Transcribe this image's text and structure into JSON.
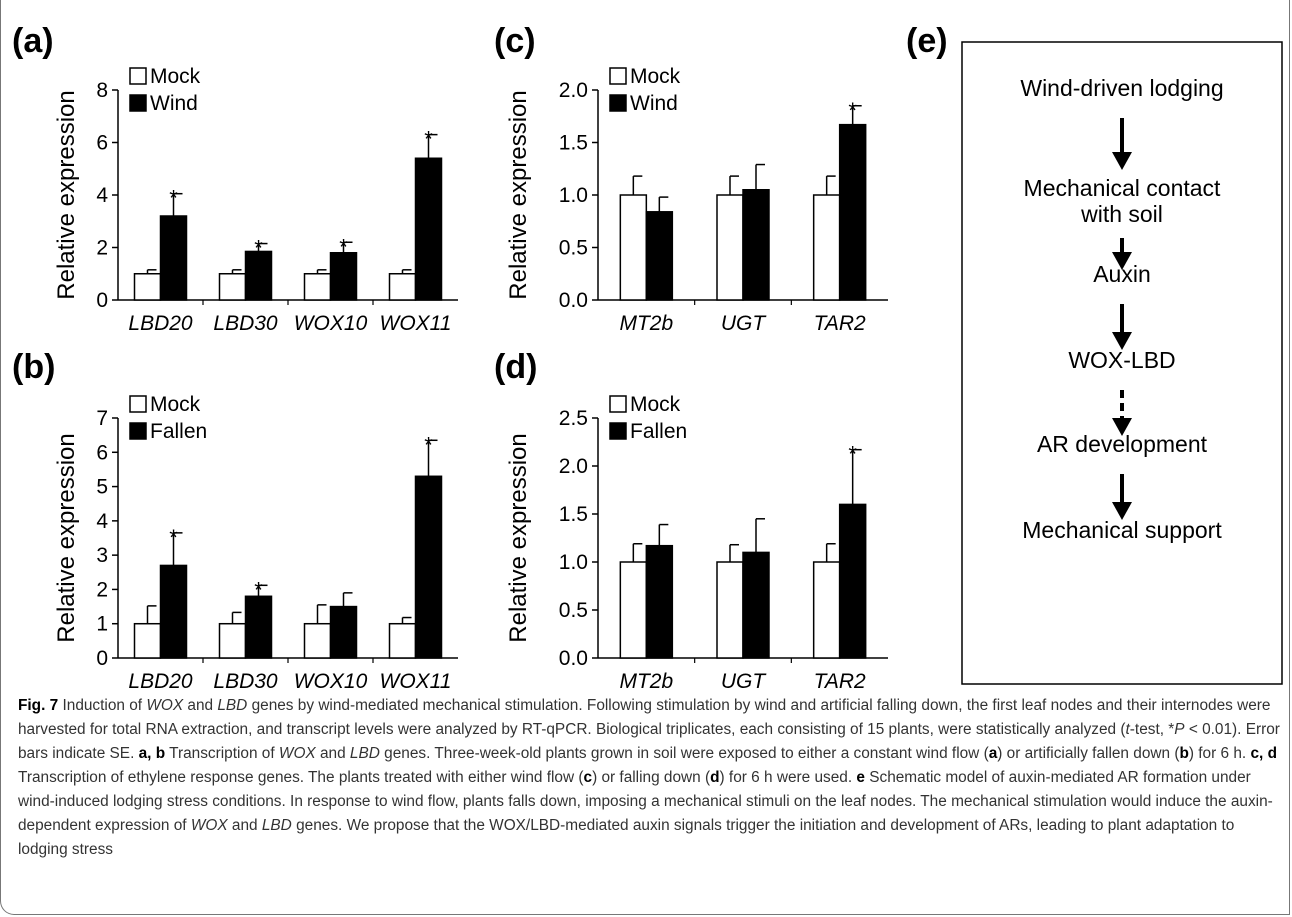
{
  "chart_data": [
    {
      "panel": "(a)",
      "type": "bar",
      "ylabel": "Relative expression",
      "ylim": [
        0,
        8
      ],
      "yticks": [
        0,
        2,
        4,
        6,
        8
      ],
      "categories": [
        "LBD20",
        "LBD30",
        "WOX10",
        "WOX11"
      ],
      "series": [
        {
          "name": "Mock",
          "values": [
            1.0,
            1.0,
            1.0,
            1.0
          ],
          "errors": [
            0.15,
            0.15,
            0.15,
            0.15
          ],
          "color": "#ffffff"
        },
        {
          "name": "Wind",
          "values": [
            3.2,
            1.85,
            1.8,
            5.4
          ],
          "errors": [
            0.85,
            0.3,
            0.4,
            0.9
          ],
          "color": "#000000"
        }
      ],
      "significant": [
        false,
        false,
        false,
        false,
        true,
        true,
        true,
        true
      ],
      "legend": "top-left"
    },
    {
      "panel": "(b)",
      "type": "bar",
      "ylabel": "Relative expression",
      "ylim": [
        0,
        7
      ],
      "yticks": [
        0,
        1,
        2,
        3,
        4,
        5,
        6,
        7
      ],
      "categories": [
        "LBD20",
        "LBD30",
        "WOX10",
        "WOX11"
      ],
      "series": [
        {
          "name": "Mock",
          "values": [
            1.0,
            1.0,
            1.0,
            1.0
          ],
          "errors": [
            0.52,
            0.33,
            0.55,
            0.18
          ],
          "color": "#ffffff"
        },
        {
          "name": "Fallen",
          "values": [
            2.7,
            1.8,
            1.5,
            5.3
          ],
          "errors": [
            0.95,
            0.32,
            0.4,
            1.05
          ],
          "color": "#000000"
        }
      ],
      "significant": [
        false,
        false,
        false,
        false,
        true,
        true,
        false,
        true
      ],
      "legend": "top-left"
    },
    {
      "panel": "(c)",
      "type": "bar",
      "ylabel": "Relative expression",
      "ylim": [
        0,
        2.0
      ],
      "yticks": [
        0,
        0.5,
        1.0,
        1.5,
        2.0
      ],
      "categories": [
        "MT2b",
        "UGT",
        "TAR2"
      ],
      "series": [
        {
          "name": "Mock",
          "values": [
            1.0,
            1.0,
            1.0
          ],
          "errors": [
            0.18,
            0.18,
            0.18
          ],
          "color": "#ffffff"
        },
        {
          "name": "Wind",
          "values": [
            0.84,
            1.05,
            1.67
          ],
          "errors": [
            0.14,
            0.24,
            0.18
          ],
          "color": "#000000"
        }
      ],
      "significant": [
        false,
        false,
        false,
        false,
        false,
        true
      ],
      "legend": "top-left"
    },
    {
      "panel": "(d)",
      "type": "bar",
      "ylabel": "Relative expression",
      "ylim": [
        0,
        2.5
      ],
      "yticks": [
        0,
        0.5,
        1.0,
        1.5,
        2.0,
        2.5
      ],
      "categories": [
        "MT2b",
        "UGT",
        "TAR2"
      ],
      "series": [
        {
          "name": "Mock",
          "values": [
            1.0,
            1.0,
            1.0
          ],
          "errors": [
            0.19,
            0.18,
            0.19
          ],
          "color": "#ffffff"
        },
        {
          "name": "Fallen",
          "values": [
            1.17,
            1.1,
            1.6
          ],
          "errors": [
            0.22,
            0.35,
            0.57
          ],
          "color": "#000000"
        }
      ],
      "significant": [
        false,
        false,
        false,
        false,
        false,
        true
      ],
      "legend": "top-left"
    }
  ],
  "schematic": {
    "label": "(e)",
    "steps": [
      "Wind-driven lodging",
      "Mechanical contact\nwith soil",
      "Auxin",
      "WOX-LBD",
      "AR development",
      "Mechanical support"
    ],
    "arrow_styles": [
      "solid",
      "solid",
      "solid",
      "dashed",
      "solid"
    ]
  },
  "caption": {
    "fig_label": "Fig. 7",
    "t1": " Induction of ",
    "i1": "WOX",
    "t2": " and ",
    "i2": "LBD",
    "t3": " genes by wind-mediated mechanical stimulation. Following stimulation by wind and artificial falling down, the first leaf nodes and their internodes were harvested for total RNA extraction, and transcript levels were analyzed by RT-qPCR. Biological triplicates, each consisting of 15 plants, were statistically analyzed (",
    "i3": "t",
    "t4": "-test, *",
    "i4": "P",
    "t5": " < 0.01). Error bars indicate SE. ",
    "b1": "a, b",
    "t6": " Transcription of ",
    "i5": "WOX",
    "t7": " and ",
    "i6": "LBD",
    "t8": " genes. Three-week-old plants grown in soil were exposed to either a constant wind flow (",
    "b2": "a",
    "t9": ") or artificially fallen down (",
    "b3": "b",
    "t10": ") for 6 h. ",
    "b4": "c, d",
    "t11": " Transcription of ethylene response genes. The plants treated with either wind flow (",
    "b5": "c",
    "t12": ") or falling down (",
    "b6": "d",
    "t13": ") for 6 h were used. ",
    "b7": "e",
    "t14": " Schematic model of auxin-mediated AR formation under wind-induced lodging stress conditions. In response to wind flow, plants falls down, imposing a mechanical stimuli on the leaf nodes. The mechanical stimulation would induce the auxin-dependent expression of ",
    "i7": "WOX",
    "t15": " and ",
    "i8": "LBD",
    "t16": " genes. We propose that the WOX/LBD-mediated auxin signals trigger the initiation and development of ARs, leading to plant adaptation to lodging stress"
  }
}
